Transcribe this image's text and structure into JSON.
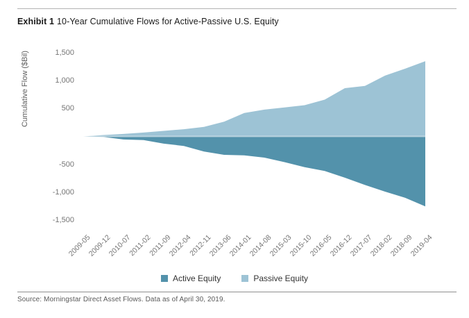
{
  "exhibit": {
    "label": "Exhibit 1",
    "title": "10-Year Cumulative Flows for Active-Passive U.S. Equity"
  },
  "source_line": "Source: Morningstar Direct Asset Flows. Data as of April 30, 2019.",
  "colors": {
    "active": "#5392ab",
    "passive": "#9dc3d5",
    "zero_line": "rgba(255,255,255,0.45)",
    "axis_text": "#757575",
    "title_text": "#1a1a1a",
    "source_text": "#595959",
    "rule_top": "#b3b3b3",
    "rule_bottom": "#8f8f8f"
  },
  "chart_data": {
    "type": "area",
    "title": "10-Year Cumulative Flows for Active-Passive U.S. Equity",
    "xlabel": "",
    "ylabel": "Cumulative Flow ($Bil)",
    "ylim": [
      -1500,
      1500
    ],
    "yticks": [
      1500,
      1000,
      500,
      -500,
      -1000,
      -1500
    ],
    "ytick_labels": [
      "1,500",
      "1,000",
      "500",
      "-500",
      "-1,000",
      "-1,500"
    ],
    "grid": false,
    "baseline": 0,
    "legend_position": "bottom",
    "categories": [
      "2009-05",
      "2009-12",
      "2010-07",
      "2011-02",
      "2011-09",
      "2012-04",
      "2012-11",
      "2013-06",
      "2014-01",
      "2014-08",
      "2015-03",
      "2015-10",
      "2016-05",
      "2016-12",
      "2017-07",
      "2018-02",
      "2018-09",
      "2019-04"
    ],
    "series": [
      {
        "name": "Active Equity",
        "color": "#5392ab",
        "values": [
          0,
          -10,
          -55,
          -65,
          -130,
          -170,
          -270,
          -330,
          -340,
          -380,
          -460,
          -550,
          -620,
          -740,
          -870,
          -990,
          -1100,
          -1255
        ]
      },
      {
        "name": "Passive Equity",
        "color": "#9dc3d5",
        "values": [
          0,
          25,
          45,
          70,
          100,
          130,
          170,
          265,
          420,
          480,
          520,
          560,
          660,
          865,
          905,
          1090,
          1215,
          1350
        ]
      }
    ]
  }
}
